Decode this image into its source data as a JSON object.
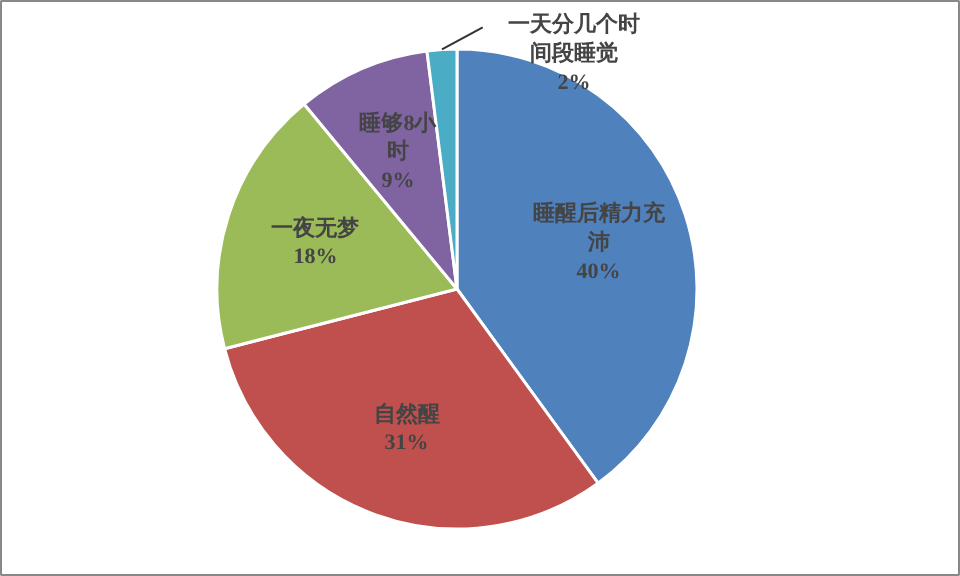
{
  "chart_data": {
    "type": "pie",
    "categories": [
      "睡醒后精力充沛",
      "自然醒",
      "一夜无梦",
      "睡够8小时",
      "一天分几个时间段睡觉"
    ],
    "values": [
      40,
      31,
      18,
      9,
      2
    ],
    "colors": [
      "#4f81bd",
      "#c0504d",
      "#9bbb59",
      "#8064a2",
      "#4bacc6"
    ],
    "value_labels": [
      "40%",
      "31%",
      "18%",
      "9%",
      "2%"
    ],
    "legend": false
  }
}
